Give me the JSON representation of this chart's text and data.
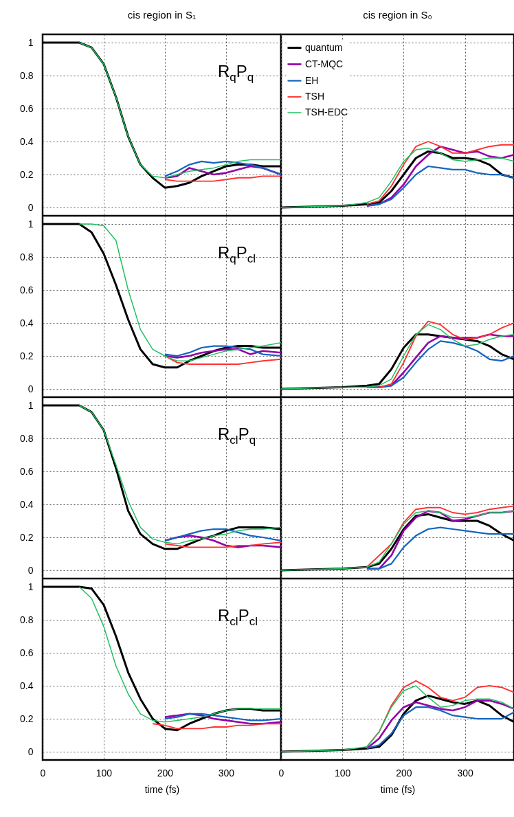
{
  "chart_data": [
    {
      "type": "line",
      "title": "cis region in S₁",
      "annotations": [
        "R$_{q}$P$_{q}$"
      ],
      "x": [
        0,
        60,
        80,
        100,
        120,
        140,
        160,
        180,
        200,
        220,
        240,
        260,
        280,
        300,
        320,
        340,
        360,
        390
      ],
      "xlim": [
        0,
        390
      ],
      "xticks": [
        0,
        100,
        200,
        300
      ],
      "ylim": [
        -0.05,
        1.05
      ],
      "yticks": [
        0,
        0.2,
        0.4,
        0.6,
        0.8,
        1
      ],
      "grid": true,
      "tick_labels": "y",
      "series": [
        {
          "color": "#000000",
          "values": [
            1,
            1,
            0.97,
            0.87,
            0.67,
            0.43,
            0.26,
            0.18,
            0.12,
            0.13,
            0.15,
            0.19,
            0.22,
            0.25,
            0.26,
            0.26,
            0.25,
            0.25
          ]
        },
        {
          "color": "#9400a8",
          "values": [
            null,
            null,
            null,
            null,
            null,
            null,
            null,
            null,
            0.18,
            0.19,
            0.24,
            0.22,
            0.2,
            0.21,
            0.23,
            0.25,
            0.24,
            0.2
          ]
        },
        {
          "color": "#1565c0",
          "values": [
            null,
            null,
            null,
            null,
            null,
            null,
            null,
            null,
            0.19,
            0.22,
            0.26,
            0.28,
            0.27,
            0.28,
            0.27,
            0.26,
            0.24,
            0.2
          ]
        },
        {
          "color": "#ff3030",
          "values": [
            null,
            null,
            null,
            null,
            null,
            null,
            null,
            null,
            0.17,
            0.16,
            0.16,
            0.16,
            0.16,
            0.17,
            0.18,
            0.18,
            0.19,
            0.19
          ]
        },
        {
          "color": "#20c060",
          "values": [
            null,
            1,
            0.97,
            0.87,
            0.67,
            0.43,
            0.26,
            0.19,
            0.18,
            0.2,
            0.22,
            0.23,
            0.24,
            0.26,
            0.28,
            0.29,
            0.29,
            0.29
          ]
        }
      ]
    },
    {
      "type": "line",
      "title": "cis region in S₀",
      "legend": "top left",
      "x": [
        0,
        100,
        140,
        160,
        180,
        200,
        220,
        240,
        260,
        280,
        300,
        320,
        340,
        360,
        380
      ],
      "xlim": [
        0,
        380
      ],
      "xticks": [
        0,
        100,
        200,
        300
      ],
      "ylim": [
        -0.05,
        1.05
      ],
      "yticks": [
        0,
        0.2,
        0.4,
        0.6,
        0.8,
        1
      ],
      "grid": true,
      "tick_labels": false,
      "series": [
        {
          "name": "quantum",
          "color": "#000000",
          "values": [
            0,
            0.01,
            0.02,
            0.03,
            0.1,
            0.2,
            0.3,
            0.34,
            0.33,
            0.3,
            0.3,
            0.29,
            0.26,
            0.2,
            0.18
          ]
        },
        {
          "name": "CT-MQC",
          "color": "#9400a8",
          "values": [
            null,
            null,
            0.01,
            0.02,
            0.06,
            0.14,
            0.25,
            0.32,
            0.37,
            0.35,
            0.33,
            0.34,
            0.31,
            0.3,
            0.32
          ]
        },
        {
          "name": "EH",
          "color": "#1565c0",
          "values": [
            null,
            null,
            0.01,
            0.02,
            0.05,
            0.12,
            0.2,
            0.25,
            0.24,
            0.23,
            0.23,
            0.21,
            0.2,
            0.2,
            0.18
          ]
        },
        {
          "name": "TSH",
          "color": "#ff3030",
          "values": [
            null,
            null,
            0.02,
            0.04,
            0.13,
            0.26,
            0.37,
            0.4,
            0.37,
            0.33,
            0.33,
            0.35,
            0.37,
            0.38,
            0.38
          ]
        },
        {
          "name": "TSH-EDC",
          "color": "#20c060",
          "values": [
            0,
            0.01,
            0.03,
            0.06,
            0.16,
            0.28,
            0.35,
            0.36,
            0.33,
            0.29,
            0.28,
            0.29,
            0.3,
            0.3,
            0.28
          ]
        }
      ]
    },
    {
      "type": "line",
      "annotations": [
        "R$_{q}$P$_{cl}$"
      ],
      "x": [
        0,
        60,
        80,
        100,
        120,
        140,
        160,
        180,
        200,
        220,
        240,
        260,
        280,
        300,
        320,
        340,
        360,
        390
      ],
      "xlim": [
        0,
        390
      ],
      "xticks": [
        0,
        100,
        200,
        300
      ],
      "ylim": [
        -0.05,
        1.05
      ],
      "yticks": [
        0,
        0.2,
        0.4,
        0.6,
        0.8,
        1
      ],
      "grid": true,
      "tick_labels": "y",
      "series": [
        {
          "color": "#000000",
          "values": [
            1,
            1,
            0.95,
            0.82,
            0.63,
            0.42,
            0.24,
            0.15,
            0.13,
            0.13,
            0.17,
            0.2,
            0.23,
            0.25,
            0.26,
            0.26,
            0.25,
            0.25
          ]
        },
        {
          "color": "#9400a8",
          "values": [
            null,
            null,
            null,
            null,
            null,
            null,
            null,
            null,
            0.2,
            0.19,
            0.2,
            0.22,
            0.23,
            0.24,
            0.24,
            0.21,
            0.23,
            0.22
          ]
        },
        {
          "color": "#1565c0",
          "values": [
            null,
            null,
            null,
            null,
            null,
            null,
            null,
            null,
            0.21,
            0.2,
            0.22,
            0.25,
            0.26,
            0.26,
            0.25,
            0.24,
            0.21,
            0.2
          ]
        },
        {
          "color": "#ff3030",
          "values": [
            null,
            null,
            null,
            null,
            null,
            null,
            null,
            null,
            0.2,
            0.16,
            0.15,
            0.15,
            0.15,
            0.15,
            0.15,
            0.16,
            0.17,
            0.18
          ]
        },
        {
          "color": "#20c060",
          "values": [
            null,
            1,
            1,
            0.99,
            0.9,
            0.6,
            0.36,
            0.24,
            0.2,
            0.17,
            0.17,
            0.19,
            0.21,
            0.23,
            0.24,
            0.25,
            0.26,
            0.28
          ]
        }
      ]
    },
    {
      "type": "line",
      "x": [
        0,
        100,
        140,
        160,
        180,
        200,
        220,
        240,
        260,
        280,
        300,
        320,
        340,
        360,
        380
      ],
      "xlim": [
        0,
        380
      ],
      "xticks": [
        0,
        100,
        200,
        300
      ],
      "ylim": [
        -0.05,
        1.05
      ],
      "yticks": [
        0,
        0.2,
        0.4,
        0.6,
        0.8,
        1
      ],
      "grid": true,
      "tick_labels": false,
      "series": [
        {
          "color": "#000000",
          "values": [
            0,
            0.01,
            0.02,
            0.03,
            0.12,
            0.25,
            0.33,
            0.33,
            0.32,
            0.31,
            0.3,
            0.29,
            0.26,
            0.21,
            0.18
          ]
        },
        {
          "color": "#9400a8",
          "values": [
            null,
            null,
            0.01,
            0.01,
            0.02,
            0.1,
            0.19,
            0.28,
            0.32,
            0.31,
            0.31,
            0.31,
            0.33,
            0.32,
            0.32
          ]
        },
        {
          "color": "#1565c0",
          "values": [
            null,
            null,
            0.01,
            0.01,
            0.02,
            0.07,
            0.16,
            0.24,
            0.29,
            0.28,
            0.26,
            0.23,
            0.18,
            0.17,
            0.2
          ]
        },
        {
          "color": "#ff3030",
          "values": [
            null,
            null,
            0.01,
            0.01,
            0.03,
            0.16,
            0.32,
            0.41,
            0.39,
            0.33,
            0.3,
            0.31,
            0.33,
            0.37,
            0.4
          ]
        },
        {
          "color": "#20c060",
          "values": [
            0,
            0.01,
            0.01,
            0.02,
            0.06,
            0.2,
            0.33,
            0.39,
            0.36,
            0.3,
            0.26,
            0.27,
            0.3,
            0.32,
            0.33
          ]
        }
      ]
    },
    {
      "type": "line",
      "annotations": [
        "R$_{cl}$P$_{q}$"
      ],
      "x": [
        0,
        60,
        80,
        100,
        120,
        140,
        160,
        180,
        200,
        220,
        240,
        260,
        280,
        300,
        320,
        340,
        360,
        390
      ],
      "xlim": [
        0,
        390
      ],
      "xticks": [
        0,
        100,
        200,
        300
      ],
      "ylim": [
        -0.05,
        1.05
      ],
      "yticks": [
        0,
        0.2,
        0.4,
        0.6,
        0.8,
        1
      ],
      "grid": true,
      "tick_labels": "y",
      "series": [
        {
          "color": "#000000",
          "values": [
            1,
            1,
            0.96,
            0.85,
            0.62,
            0.36,
            0.22,
            0.16,
            0.13,
            0.13,
            0.16,
            0.19,
            0.21,
            0.24,
            0.26,
            0.26,
            0.26,
            0.25
          ]
        },
        {
          "color": "#9400a8",
          "values": [
            null,
            null,
            null,
            null,
            null,
            null,
            null,
            null,
            0.18,
            0.2,
            0.21,
            0.2,
            0.18,
            0.15,
            0.14,
            0.15,
            0.15,
            0.14
          ]
        },
        {
          "color": "#1565c0",
          "values": [
            null,
            null,
            null,
            null,
            null,
            null,
            null,
            null,
            0.18,
            0.2,
            0.22,
            0.24,
            0.25,
            0.25,
            0.23,
            0.21,
            0.2,
            0.18
          ]
        },
        {
          "color": "#ff3030",
          "values": [
            null,
            null,
            null,
            null,
            null,
            null,
            null,
            null,
            0.16,
            0.15,
            0.14,
            0.14,
            0.14,
            0.14,
            0.15,
            0.15,
            0.16,
            0.17
          ]
        },
        {
          "color": "#20c060",
          "values": [
            null,
            1,
            0.96,
            0.85,
            0.64,
            0.42,
            0.26,
            0.19,
            0.17,
            0.16,
            0.18,
            0.19,
            0.21,
            0.22,
            0.24,
            0.25,
            0.25,
            0.26
          ]
        }
      ]
    },
    {
      "type": "line",
      "x": [
        0,
        100,
        140,
        160,
        180,
        200,
        220,
        240,
        260,
        280,
        300,
        320,
        340,
        360,
        380
      ],
      "xlim": [
        0,
        380
      ],
      "xticks": [
        0,
        100,
        200,
        300
      ],
      "ylim": [
        -0.05,
        1.05
      ],
      "yticks": [
        0,
        0.2,
        0.4,
        0.6,
        0.8,
        1
      ],
      "grid": true,
      "tick_labels": false,
      "series": [
        {
          "color": "#000000",
          "values": [
            0,
            0.01,
            0.02,
            0.04,
            0.13,
            0.25,
            0.33,
            0.34,
            0.32,
            0.3,
            0.3,
            0.3,
            0.27,
            0.22,
            0.18
          ]
        },
        {
          "color": "#9400a8",
          "values": [
            null,
            null,
            0.01,
            0.01,
            0.09,
            0.24,
            0.32,
            0.36,
            0.35,
            0.3,
            0.31,
            0.33,
            0.35,
            0.35,
            0.36
          ]
        },
        {
          "color": "#1565c0",
          "values": [
            null,
            null,
            0.01,
            0.01,
            0.04,
            0.14,
            0.21,
            0.25,
            0.26,
            0.25,
            0.24,
            0.23,
            0.22,
            0.22,
            0.22
          ]
        },
        {
          "color": "#ff3030",
          "values": [
            null,
            null,
            0.02,
            null,
            0.16,
            0.29,
            0.37,
            0.38,
            0.38,
            0.35,
            0.34,
            0.35,
            0.37,
            0.38,
            0.39
          ]
        },
        {
          "color": "#20c060",
          "values": [
            0,
            0.01,
            0.02,
            0.05,
            0.16,
            0.28,
            0.35,
            0.36,
            0.35,
            0.32,
            0.32,
            0.33,
            0.35,
            0.35,
            0.36
          ]
        }
      ]
    },
    {
      "type": "line",
      "annotations": [
        "R$_{cl}$P$_{cl}$"
      ],
      "xlabel": "time (fs)",
      "x": [
        0,
        60,
        80,
        100,
        120,
        140,
        160,
        180,
        200,
        220,
        240,
        260,
        280,
        300,
        320,
        340,
        360,
        390
      ],
      "xlim": [
        0,
        390
      ],
      "xticks": [
        0,
        100,
        200,
        300
      ],
      "ylim": [
        -0.05,
        1.05
      ],
      "yticks": [
        0,
        0.2,
        0.4,
        0.6,
        0.8,
        1
      ],
      "grid": true,
      "series": [
        {
          "color": "#000000",
          "values": [
            1,
            1,
            0.99,
            0.89,
            0.7,
            0.48,
            0.32,
            0.2,
            0.14,
            0.13,
            0.17,
            0.2,
            0.23,
            0.25,
            0.26,
            0.26,
            0.25,
            0.25
          ]
        },
        {
          "color": "#9400a8",
          "values": [
            null,
            null,
            null,
            null,
            null,
            null,
            null,
            null,
            0.21,
            0.22,
            0.23,
            0.22,
            0.2,
            0.19,
            0.18,
            0.17,
            0.17,
            0.18
          ]
        },
        {
          "color": "#1565c0",
          "values": [
            null,
            null,
            null,
            null,
            null,
            null,
            null,
            null,
            0.2,
            0.21,
            0.23,
            0.23,
            0.22,
            0.21,
            0.2,
            0.19,
            0.19,
            0.2
          ]
        },
        {
          "color": "#ff3030",
          "values": [
            null,
            null,
            null,
            null,
            null,
            null,
            null,
            0.17,
            0.16,
            0.14,
            0.14,
            0.14,
            0.15,
            0.15,
            0.16,
            0.16,
            0.17,
            0.17
          ]
        },
        {
          "color": "#20c060",
          "values": [
            null,
            1,
            0.93,
            0.76,
            0.52,
            0.35,
            0.23,
            0.19,
            0.18,
            0.19,
            0.2,
            0.21,
            0.23,
            0.25,
            0.26,
            0.26,
            0.26,
            0.26
          ]
        }
      ]
    },
    {
      "type": "line",
      "xlabel": "time (fs)",
      "x": [
        0,
        100,
        140,
        160,
        180,
        200,
        220,
        240,
        260,
        280,
        300,
        320,
        340,
        360,
        380
      ],
      "xlim": [
        0,
        380
      ],
      "xticks": [
        0,
        100,
        200,
        300
      ],
      "ylim": [
        -0.05,
        1.05
      ],
      "yticks": [
        0,
        0.2,
        0.4,
        0.6,
        0.8,
        1
      ],
      "grid": true,
      "tick_labels": "x",
      "series": [
        {
          "color": "#000000",
          "values": [
            0,
            0.01,
            0.02,
            0.03,
            0.1,
            0.23,
            0.31,
            0.34,
            0.32,
            0.3,
            0.29,
            0.31,
            0.28,
            0.22,
            0.18
          ]
        },
        {
          "color": "#9400a8",
          "values": [
            null,
            null,
            0.02,
            0.08,
            0.19,
            0.27,
            0.3,
            0.28,
            0.26,
            0.25,
            0.27,
            0.31,
            0.31,
            0.29,
            0.26
          ]
        },
        {
          "color": "#1565c0",
          "values": [
            null,
            null,
            0.02,
            0.04,
            0.11,
            0.22,
            0.27,
            0.27,
            0.25,
            0.22,
            0.21,
            0.2,
            0.2,
            0.2,
            0.24
          ]
        },
        {
          "color": "#ff3030",
          "values": [
            null,
            null,
            0.03,
            0.12,
            0.28,
            0.39,
            0.43,
            0.39,
            0.33,
            0.31,
            0.33,
            0.39,
            0.4,
            0.39,
            0.36
          ]
        },
        {
          "color": "#20c060",
          "values": [
            0,
            0.01,
            0.03,
            0.12,
            0.27,
            0.37,
            0.4,
            0.33,
            0.27,
            0.28,
            0.31,
            0.32,
            0.32,
            0.3,
            0.26
          ]
        }
      ]
    }
  ]
}
